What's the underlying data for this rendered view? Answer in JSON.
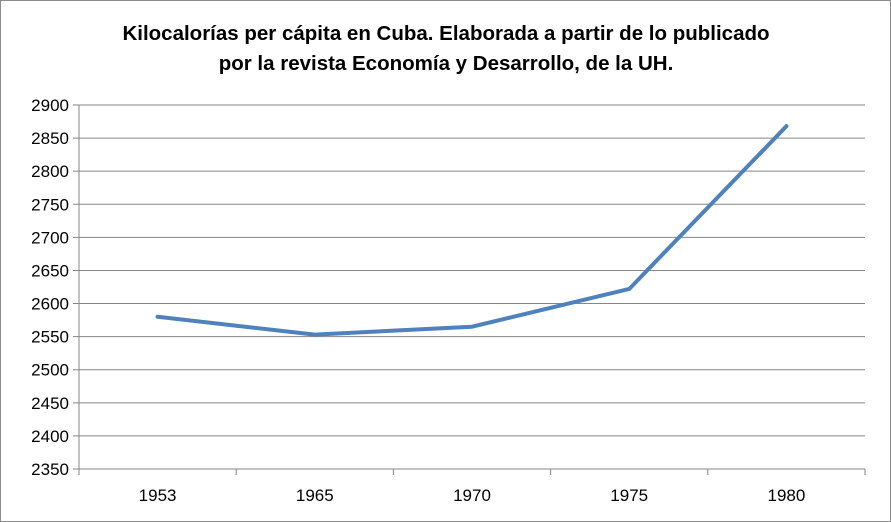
{
  "chart_data": {
    "type": "line",
    "title": "Kilocalorías per cápita en Cuba. Elaborada a partir de lo publicado\npor la revista Economía y Desarrollo, de la UH.",
    "xlabel": "",
    "ylabel": "",
    "categories": [
      "1953",
      "1965",
      "1970",
      "1975",
      "1980"
    ],
    "series": [
      {
        "values": [
          2580,
          2553,
          2565,
          2622,
          2868
        ],
        "color": "#4f81bd"
      }
    ],
    "ylim": [
      2350,
      2900
    ],
    "yticks": [
      2350,
      2400,
      2450,
      2500,
      2550,
      2600,
      2650,
      2700,
      2750,
      2800,
      2850,
      2900
    ],
    "grid": true,
    "legend": "none"
  }
}
